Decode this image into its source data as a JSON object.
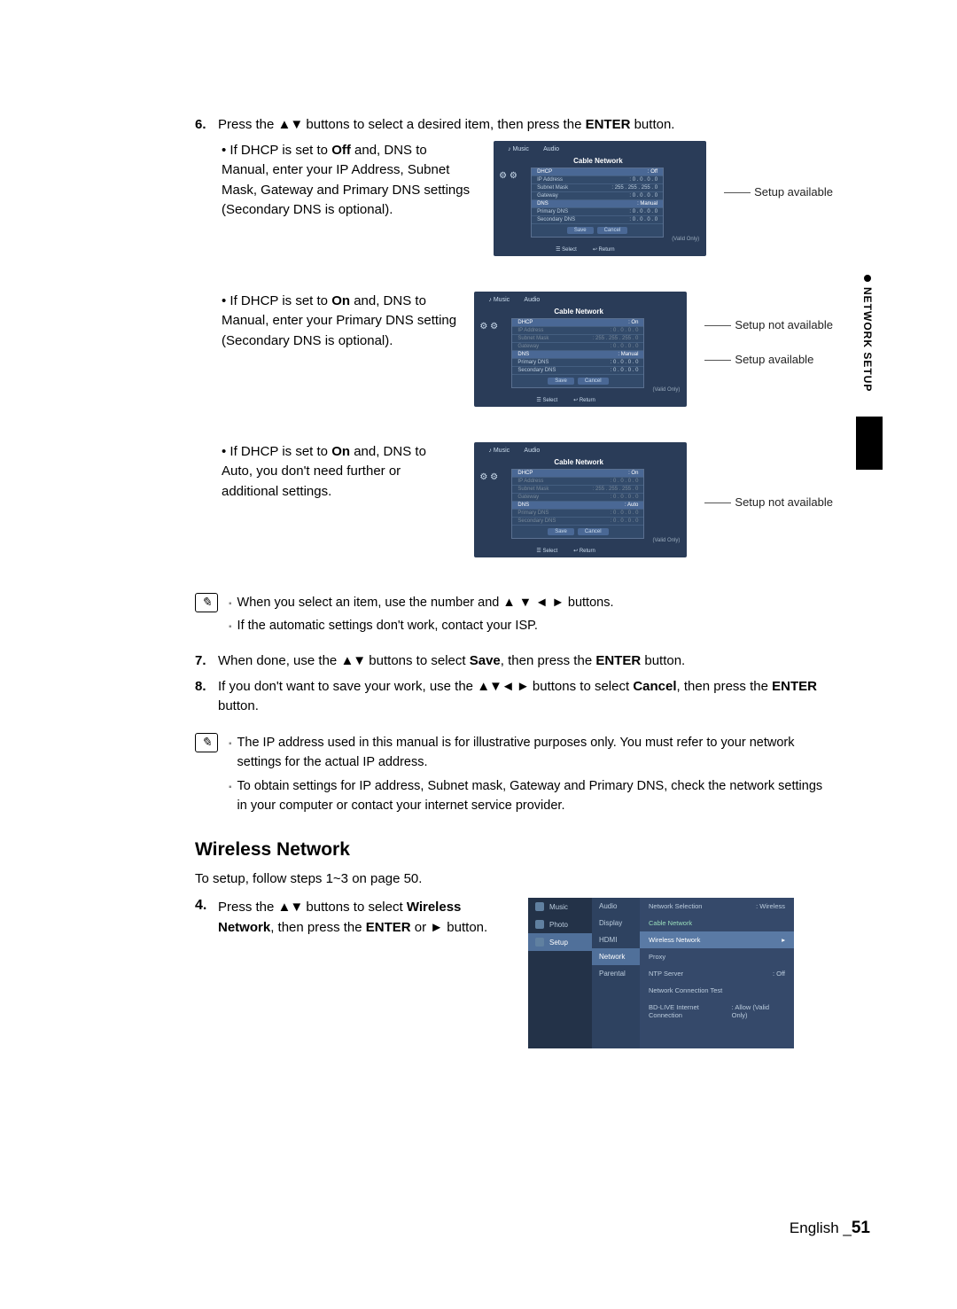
{
  "sideTab": "NETWORK SETUP",
  "step6": {
    "num": "6.",
    "text_a": "Press the ",
    "arrows": "▲▼",
    "text_b": " buttons to select a desired item, then press the ",
    "enter": "ENTER",
    "text_c": " button."
  },
  "bullets": [
    {
      "pre": "If DHCP is set to ",
      "b1": "Off",
      "mid": " and, DNS to Manual, enter your IP Address, Subnet Mask, Gateway and Primary DNS settings (Secondary DNS is optional).",
      "callouts": [
        "Setup available"
      ]
    },
    {
      "pre": "If DHCP is set to ",
      "b1": "On",
      "mid": " and, DNS to Manual, enter your Primary DNS setting (Secondary DNS is optional).",
      "callouts": [
        "Setup not available",
        "Setup available"
      ]
    },
    {
      "pre": "If DHCP is set to ",
      "b1": "On",
      "mid": " and, DNS to Auto, you don't need further or additional settings.",
      "callouts": [
        "Setup not available"
      ]
    }
  ],
  "osd": {
    "topMusic": "Music",
    "topAudio": "Audio",
    "title": "Cable Network",
    "icons": "⚙ ⚙",
    "valid": "(Valid Only)",
    "select": "☰ Select",
    "return": "↩ Return",
    "btnSave": "Save",
    "btnCancel": "Cancel",
    "panels": [
      {
        "rows": [
          {
            "l": "DHCP",
            "r": ": Off",
            "hi": true
          },
          {
            "l": "IP Address",
            "r": ": 0 . 0 . 0 . 0"
          },
          {
            "l": "Subnet Mask",
            "r": ": 255 . 255 . 255 . 0"
          },
          {
            "l": "Gateway",
            "r": ": 0 . 0 . 0 . 0"
          },
          {
            "l": "DNS",
            "r": ": Manual",
            "hi": true
          },
          {
            "l": "Primary DNS",
            "r": ": 0 . 0 . 0 . 0"
          },
          {
            "l": "Secondary DNS",
            "r": ": 0 . 0 . 0 . 0"
          }
        ]
      },
      {
        "rows": [
          {
            "l": "DHCP",
            "r": ": On",
            "hi": true
          },
          {
            "l": "IP Address",
            "r": ": 0 . 0 . 0 . 0",
            "dim": true
          },
          {
            "l": "Subnet Mask",
            "r": ": 255 . 255 . 255 . 0",
            "dim": true
          },
          {
            "l": "Gateway",
            "r": ": 0 . 0 . 0 . 0",
            "dim": true
          },
          {
            "l": "DNS",
            "r": ": Manual",
            "hi": true
          },
          {
            "l": "Primary DNS",
            "r": ": 0 . 0 . 0 . 0"
          },
          {
            "l": "Secondary DNS",
            "r": ": 0 . 0 . 0 . 0"
          }
        ]
      },
      {
        "rows": [
          {
            "l": "DHCP",
            "r": ": On",
            "hi": true
          },
          {
            "l": "IP Address",
            "r": ": 0 . 0 . 0 . 0",
            "dim": true
          },
          {
            "l": "Subnet Mask",
            "r": ": 255 . 255 . 255 . 0",
            "dim": true
          },
          {
            "l": "Gateway",
            "r": ": 0 . 0 . 0 . 0",
            "dim": true
          },
          {
            "l": "DNS",
            "r": ": Auto",
            "hi": true
          },
          {
            "l": "Primary DNS",
            "r": ": 0 . 0 . 0 . 0",
            "dim": true
          },
          {
            "l": "Secondary DNS",
            "r": ": 0 . 0 . 0 . 0",
            "dim": true
          }
        ]
      }
    ]
  },
  "note1": [
    "When you select an item, use the number and ▲ ▼ ◄ ► buttons.",
    "If the automatic settings don't work, contact your ISP."
  ],
  "step7": {
    "num": "7.",
    "a": "When done, use the ",
    "arrows": "▲▼",
    "b": " buttons to select ",
    "save": "Save",
    "c": ", then press the ",
    "enter": "ENTER",
    "d": " button."
  },
  "step8": {
    "num": "8.",
    "a": "If you don't want to save your work, use the ",
    "arrows": "▲▼◄ ►",
    "b": " buttons to select ",
    "cancel": "Cancel",
    "c": ", then press the ",
    "enter": "ENTER",
    "d": " button."
  },
  "note2": [
    "The IP address used in this manual is for illustrative purposes only. You must refer to your network settings for the actual IP address.",
    "To obtain settings for IP address, Subnet mask, Gateway and Primary DNS, check the network settings in your computer or contact your internet service provider."
  ],
  "wirelessHeading": "Wireless Network",
  "wirelessIntro": "To setup, follow steps 1~3 on page 50.",
  "step4": {
    "num": "4.",
    "a": "Press the ",
    "arrows": "▲▼",
    "b": " buttons to select ",
    "wn": "Wireless Network",
    "c": ", then press the ",
    "enter": "ENTER",
    "d": " or ► button."
  },
  "menuOsd": {
    "left": [
      {
        "icon": true,
        "t": "Music"
      },
      {
        "icon": true,
        "t": "Photo"
      },
      {
        "icon": true,
        "t": "Setup",
        "hi": true
      }
    ],
    "mid": [
      {
        "t": "Audio"
      },
      {
        "t": "Display"
      },
      {
        "t": "HDMI"
      },
      {
        "t": "Network",
        "hi": true
      },
      {
        "t": "Parental"
      }
    ],
    "right": [
      {
        "l": "Network Selection",
        "r": ": Wireless"
      },
      {
        "l": "Cable Network",
        "r": "",
        "sub": true
      },
      {
        "l": "Wireless Network",
        "r": "▸",
        "hi": true
      },
      {
        "l": "Proxy",
        "r": ""
      },
      {
        "l": "NTP Server",
        "r": ": Off"
      },
      {
        "l": "Network Connection Test",
        "r": ""
      },
      {
        "l": "BD-LIVE Internet Connection",
        "r": ": Allow (Valid Only)"
      }
    ]
  },
  "footer": {
    "lang": "English ",
    "underscore": "_",
    "page": "51"
  }
}
